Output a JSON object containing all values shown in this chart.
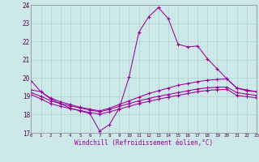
{
  "xlabel": "Windchill (Refroidissement éolien,°C)",
  "bg_color": "#cce8e8",
  "grid_color": "#b0d0d0",
  "line_color": "#990099",
  "ylim": [
    17,
    24
  ],
  "xlim": [
    0,
    23
  ],
  "yticks": [
    17,
    18,
    19,
    20,
    21,
    22,
    23,
    24
  ],
  "xticks": [
    0,
    1,
    2,
    3,
    4,
    5,
    6,
    7,
    8,
    9,
    10,
    11,
    12,
    13,
    14,
    15,
    16,
    17,
    18,
    19,
    20,
    21,
    22,
    23
  ],
  "curve1_x": [
    0,
    1,
    2,
    3,
    4,
    5,
    6,
    7,
    8,
    9,
    10,
    11,
    12,
    13,
    14,
    15,
    16,
    17,
    18,
    19,
    20,
    21,
    22,
    23
  ],
  "curve1_y": [
    19.85,
    19.25,
    18.85,
    18.6,
    18.35,
    18.2,
    18.05,
    17.1,
    17.45,
    18.35,
    20.05,
    22.5,
    23.35,
    23.85,
    23.25,
    21.85,
    21.7,
    21.75,
    21.05,
    20.5,
    19.95,
    19.45,
    19.3,
    19.25
  ],
  "curve2_x": [
    0,
    1,
    2,
    3,
    4,
    5,
    6,
    7,
    8,
    9,
    10,
    11,
    12,
    13,
    14,
    15,
    16,
    17,
    18,
    19,
    20,
    21,
    22,
    23
  ],
  "curve2_y": [
    19.35,
    19.25,
    18.9,
    18.7,
    18.55,
    18.4,
    18.3,
    18.2,
    18.35,
    18.55,
    18.75,
    18.95,
    19.15,
    19.3,
    19.45,
    19.6,
    19.7,
    19.8,
    19.88,
    19.92,
    19.95,
    19.45,
    19.35,
    19.25
  ],
  "curve3_x": [
    0,
    1,
    2,
    3,
    4,
    5,
    6,
    7,
    8,
    9,
    10,
    11,
    12,
    13,
    14,
    15,
    16,
    17,
    18,
    19,
    20,
    21,
    22,
    23
  ],
  "curve3_y": [
    19.2,
    19.0,
    18.75,
    18.6,
    18.48,
    18.36,
    18.25,
    18.15,
    18.28,
    18.45,
    18.6,
    18.75,
    18.88,
    19.0,
    19.1,
    19.2,
    19.3,
    19.4,
    19.46,
    19.5,
    19.5,
    19.2,
    19.12,
    19.05
  ],
  "curve4_x": [
    0,
    1,
    2,
    3,
    4,
    5,
    6,
    7,
    8,
    9,
    10,
    11,
    12,
    13,
    14,
    15,
    16,
    17,
    18,
    19,
    20,
    21,
    22,
    23
  ],
  "curve4_y": [
    19.1,
    18.85,
    18.6,
    18.45,
    18.33,
    18.22,
    18.12,
    18.02,
    18.15,
    18.3,
    18.45,
    18.6,
    18.72,
    18.84,
    18.95,
    19.05,
    19.15,
    19.25,
    19.32,
    19.36,
    19.38,
    19.05,
    18.98,
    18.92
  ]
}
